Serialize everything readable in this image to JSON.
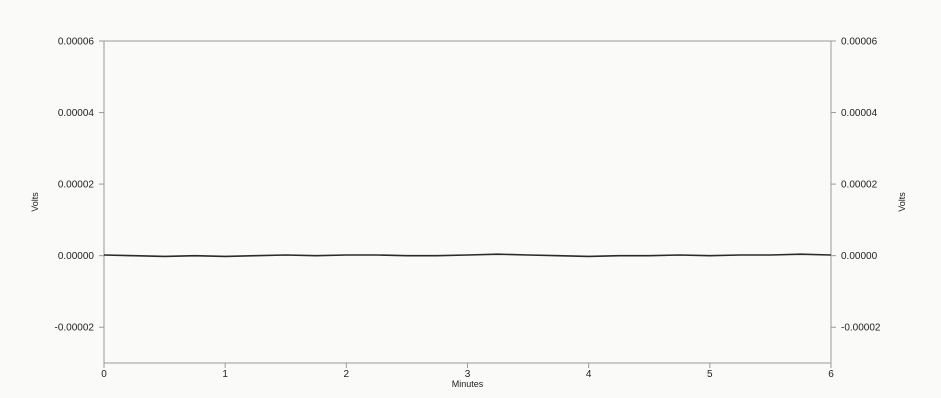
{
  "chart_data": {
    "type": "line",
    "xlabel": "Minutes",
    "ylabel_left": "Volts",
    "ylabel_right": "Volts",
    "xlim": [
      0,
      6
    ],
    "ylim": [
      -3e-05,
      6e-05
    ],
    "x_ticks": [
      0,
      1,
      2,
      3,
      4,
      5,
      6
    ],
    "x_tick_labels": [
      "0",
      "1",
      "2",
      "3",
      "4",
      "5",
      "6"
    ],
    "y_ticks": [
      6e-05,
      4e-05,
      2e-05,
      0.0,
      -2e-05
    ],
    "y_tick_labels_left": [
      "0.00006",
      "0.00004",
      "0.00002",
      "0.00000",
      "-0.00002"
    ],
    "y_tick_labels_right": [
      "0.00006",
      "0.00004",
      "0.00002",
      "0.00000",
      "-0.00002"
    ],
    "grid": false,
    "colors": {
      "line": "#2a2a2a",
      "frame": "#9a9a9a",
      "text": "#222222"
    },
    "series": [
      {
        "x": [
          0,
          0.25,
          0.5,
          0.75,
          1,
          1.25,
          1.5,
          1.75,
          2,
          2.25,
          2.5,
          2.75,
          3,
          3.25,
          3.5,
          3.75,
          4,
          4.25,
          4.5,
          4.75,
          5,
          5.25,
          5.5,
          5.75,
          6
        ],
        "y": [
          2e-07,
          0.0,
          -2e-07,
          0.0,
          -2e-07,
          0.0,
          2e-07,
          0.0,
          2e-07,
          2e-07,
          0.0,
          0.0,
          2e-07,
          4e-07,
          2e-07,
          0.0,
          -2e-07,
          0.0,
          0.0,
          2e-07,
          0.0,
          2e-07,
          2e-07,
          4e-07,
          2e-07
        ]
      }
    ]
  }
}
